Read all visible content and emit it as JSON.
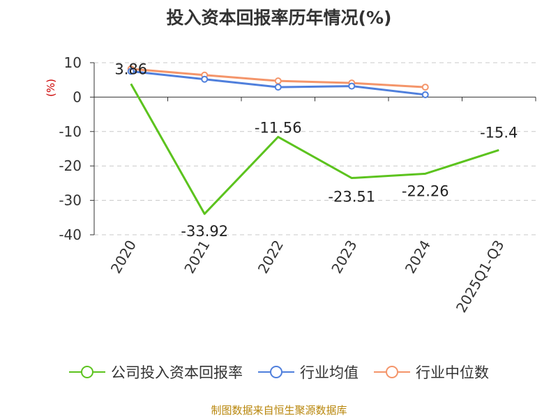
{
  "chart_data": {
    "type": "line",
    "title": "投入资本回报率历年情况(%)",
    "ylabel": "(%)",
    "categories": [
      "2020",
      "2021",
      "2022",
      "2023",
      "2024",
      "2025Q1-Q3"
    ],
    "ylim": [
      -40,
      10
    ],
    "yticks": [
      10,
      0,
      -10,
      -20,
      -30,
      -40
    ],
    "grid": true,
    "legend_position": "bottom",
    "series": [
      {
        "name": "公司投入资本回报率",
        "color": "#5cc31e",
        "values": [
          3.86,
          -33.92,
          -11.56,
          -23.51,
          -22.26,
          -15.4
        ],
        "data_labels": [
          "3.86",
          "-33.92",
          "-11.56",
          "-23.51",
          "-22.26",
          "-15.4"
        ]
      },
      {
        "name": "行业均值",
        "color": "#4f7fdc",
        "values": [
          7.5,
          5.2,
          2.9,
          3.2,
          0.7,
          null
        ]
      },
      {
        "name": "行业中位数",
        "color": "#f4956a",
        "values": [
          8.2,
          6.4,
          4.7,
          4.1,
          2.9,
          null
        ]
      }
    ]
  },
  "source": "制图数据来自恒生聚源数据库"
}
